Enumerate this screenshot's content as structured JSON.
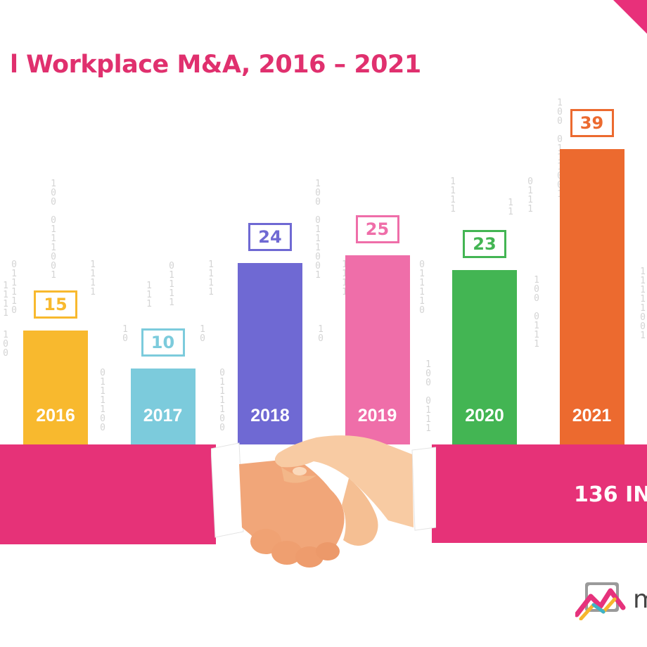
{
  "chart_data": {
    "type": "bar",
    "title": "l Workplace M&A, 2016 – 2021",
    "categories": [
      "2016",
      "2017",
      "2018",
      "2019",
      "2020",
      "2021"
    ],
    "values": [
      15,
      10,
      24,
      25,
      23,
      39
    ],
    "colors": [
      "#f8b92e",
      "#7ccbdc",
      "#6f69d3",
      "#ef6ea9",
      "#43b553",
      "#ec6a2f"
    ],
    "xlabel": "",
    "ylabel": "",
    "ylim": [
      0,
      39
    ],
    "grid": false,
    "legend": "none"
  },
  "band": {
    "text": "136 IN"
  },
  "logo": {
    "letter": "m",
    "icon": "brand-logo-icon"
  },
  "decoration": {
    "icon": "handshake-icon",
    "background": "binary-digits"
  },
  "colors": {
    "title": "#e0306e",
    "band": "#e63278",
    "corner": "#e8307a"
  }
}
